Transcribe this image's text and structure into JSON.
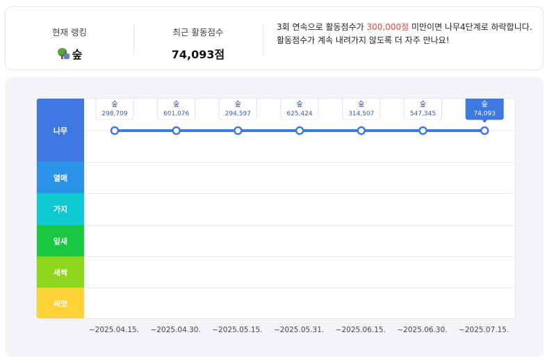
{
  "summary": {
    "rank_label": "현재 랭킹",
    "rank_value": "숲",
    "rank_icon": "tree-rank-icon",
    "score_label": "최근 활동점수",
    "score_value": "74,093점",
    "message": {
      "part1": "3회 연속으로 활동점수가 ",
      "threshold": "300,000점",
      "part2": " 미만이면 나무4단계로 하락합니다.",
      "part3": "활동점수가 계속 내려가지 않도록 더 자주 만나요!"
    },
    "warn_color": "#e8453c"
  },
  "levels": [
    {
      "name": "나무",
      "color": "#3f78e0"
    },
    {
      "name": "열매",
      "color": "#2b94e8"
    },
    {
      "name": "가지",
      "color": "#0ec8d2"
    },
    {
      "name": "잎새",
      "color": "#1ac742"
    },
    {
      "name": "새싹",
      "color": "#8ed61c"
    },
    {
      "name": "씨앗",
      "color": "#ffd335"
    }
  ],
  "chart_data": {
    "type": "line",
    "x": [
      "~2025.04.15.",
      "~2025.04.30.",
      "~2025.05.15.",
      "~2025.05.31.",
      "~2025.06.15.",
      "~2025.06.30.",
      "~2025.07.15."
    ],
    "series": [
      {
        "values": [
          298709,
          601076,
          294597,
          625424,
          314507,
          547345,
          74093
        ],
        "level_labels": [
          "숲",
          "숲",
          "숲",
          "숲",
          "숲",
          "숲",
          "숲"
        ],
        "value_labels": [
          "298,709",
          "601,076",
          "294,597",
          "625,424",
          "314,507",
          "547,345",
          "74,093"
        ],
        "level_index": [
          0,
          0,
          0,
          0,
          0,
          0,
          0
        ]
      }
    ],
    "line_color": "#3f78e0",
    "highlight_last": true,
    "grid": true
  }
}
